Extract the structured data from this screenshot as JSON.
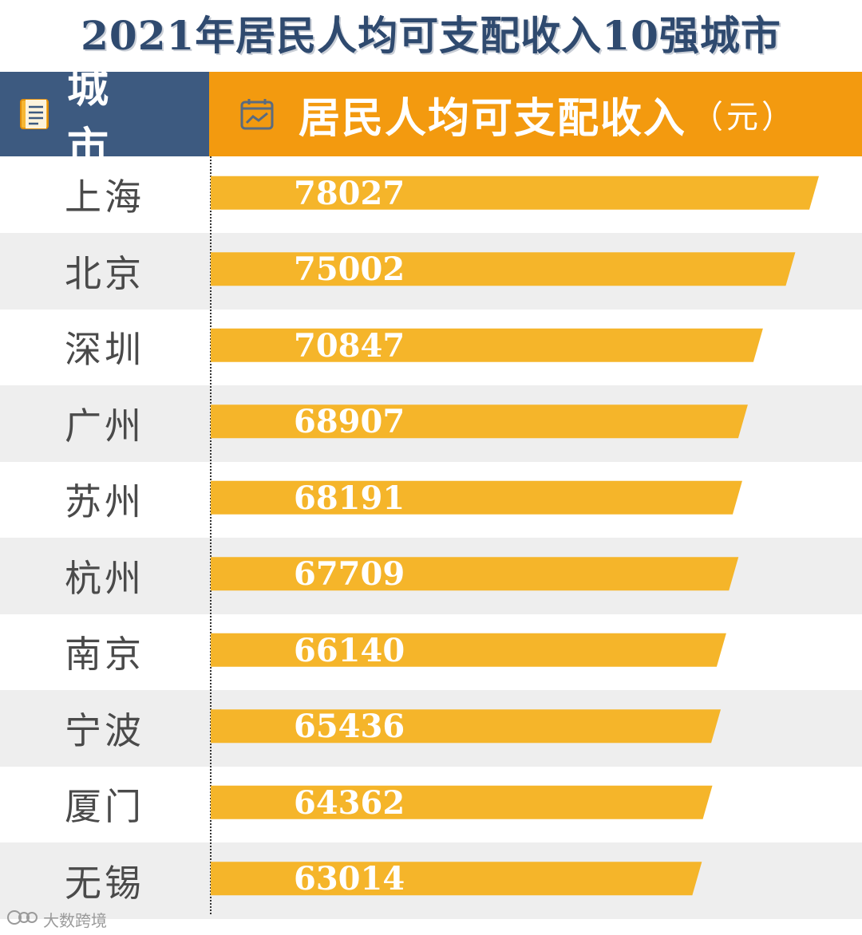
{
  "title": "2021年居民人均可支配收入10强城市",
  "header": {
    "city_label": "城 市",
    "income_label": "居民人均可支配收入",
    "unit": "（元）"
  },
  "watermark": "大数跨境",
  "colors": {
    "title": "#2f4a6f",
    "header_left": "#3d5a80",
    "header_right": "#f39a0f",
    "bar": "#f5b52a",
    "row_alt": "#eeeeee"
  },
  "chart_data": {
    "type": "bar",
    "orientation": "horizontal",
    "title": "2021年居民人均可支配收入10强城市",
    "categories": [
      "上海",
      "北京",
      "深圳",
      "广州",
      "苏州",
      "杭州",
      "南京",
      "宁波",
      "厦门",
      "无锡"
    ],
    "values": [
      78027,
      75002,
      70847,
      68907,
      68191,
      67709,
      66140,
      65436,
      64362,
      63014
    ],
    "value_labels": [
      "78027",
      "75002",
      "70847",
      "68907",
      "68191",
      "67709",
      "66140",
      "65436",
      "64362",
      "63014"
    ],
    "xlabel": "居民人均可支配收入（元）",
    "ylabel": "城市",
    "grid": false,
    "legend": "none"
  }
}
